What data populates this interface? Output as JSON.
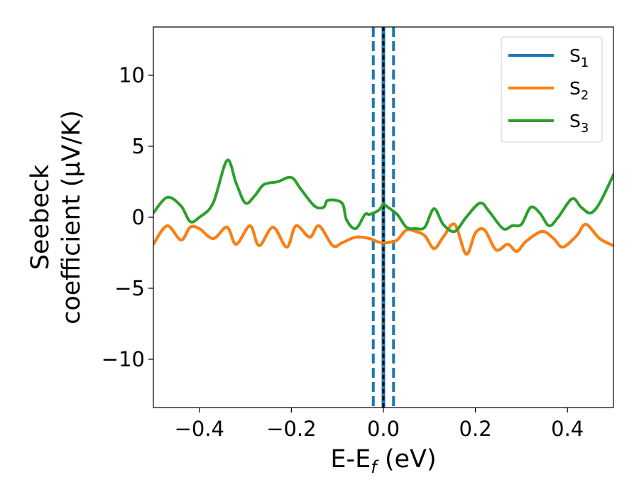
{
  "chart_data": {
    "type": "line",
    "xlabel_main": "E-E",
    "xlabel_sub": "f",
    "xlabel_tail": " (eV)",
    "ylabel_line1": "Seebeck",
    "ylabel_line2": "coefficient  (μV/K)",
    "xlim": [
      -0.5,
      0.5
    ],
    "ylim": [
      -13.4,
      13.4
    ],
    "xticks": [
      -0.4,
      -0.2,
      0.0,
      0.2,
      0.4
    ],
    "xtick_labels": [
      "−0.4",
      "−0.2",
      "0.0",
      "0.2",
      "0.4"
    ],
    "yticks": [
      -10,
      -5,
      0,
      5,
      10
    ],
    "ytick_labels": [
      "−10",
      "−5",
      "0",
      "5",
      "10"
    ],
    "grid": false,
    "legend_position": "top-right",
    "series": [
      {
        "name": "S",
        "sub": "1",
        "color": "#1f77b4",
        "x": [
          -0.5,
          -0.47,
          -0.44,
          -0.42,
          -0.4,
          -0.37,
          -0.34,
          -0.32,
          -0.29,
          -0.27,
          -0.24,
          -0.21,
          -0.19,
          -0.16,
          -0.14,
          -0.11,
          -0.09,
          -0.06,
          -0.03,
          -0.015,
          0.0,
          0.015,
          0.03,
          0.05,
          0.07,
          0.09,
          0.11,
          0.13,
          0.155,
          0.18,
          0.2,
          0.22,
          0.245,
          0.27,
          0.29,
          0.31,
          0.345,
          0.37,
          0.39,
          0.42,
          0.44,
          0.47,
          0.5
        ],
        "y": [
          -1.9,
          -0.6,
          -1.6,
          -0.7,
          -0.8,
          -1.5,
          -0.7,
          -1.9,
          -0.6,
          -2.0,
          -0.7,
          -2.1,
          -0.6,
          -1.4,
          -0.6,
          -2.0,
          -1.8,
          -1.4,
          -1.5,
          -1.7,
          -1.8,
          -1.75,
          -1.6,
          -0.9,
          -1.0,
          -1.3,
          -2.2,
          -1.4,
          -0.5,
          -2.6,
          -1.1,
          -0.9,
          -2.3,
          -1.9,
          -2.4,
          -1.7,
          -1.0,
          -1.5,
          -2.1,
          -1.3,
          -0.5,
          -1.5,
          -2.0
        ]
      },
      {
        "name": "S",
        "sub": "2",
        "color": "#ff7f0e",
        "x": [
          -0.5,
          -0.47,
          -0.44,
          -0.42,
          -0.4,
          -0.37,
          -0.34,
          -0.32,
          -0.29,
          -0.27,
          -0.24,
          -0.21,
          -0.19,
          -0.16,
          -0.14,
          -0.11,
          -0.09,
          -0.06,
          -0.03,
          -0.015,
          0.0,
          0.015,
          0.03,
          0.05,
          0.07,
          0.09,
          0.11,
          0.13,
          0.155,
          0.18,
          0.2,
          0.22,
          0.245,
          0.27,
          0.29,
          0.31,
          0.345,
          0.37,
          0.39,
          0.42,
          0.44,
          0.47,
          0.5
        ],
        "y": [
          -1.9,
          -0.6,
          -1.6,
          -0.7,
          -0.8,
          -1.5,
          -0.7,
          -1.9,
          -0.6,
          -2.0,
          -0.7,
          -2.1,
          -0.6,
          -1.4,
          -0.6,
          -2.0,
          -1.8,
          -1.4,
          -1.5,
          -1.7,
          -1.8,
          -1.75,
          -1.6,
          -0.9,
          -1.0,
          -1.3,
          -2.2,
          -1.4,
          -0.5,
          -2.6,
          -1.1,
          -0.9,
          -2.3,
          -1.9,
          -2.4,
          -1.7,
          -1.0,
          -1.5,
          -2.1,
          -1.3,
          -0.5,
          -1.5,
          -2.0
        ]
      },
      {
        "name": "S",
        "sub": "3",
        "color": "#2ca02c",
        "x": [
          -0.5,
          -0.47,
          -0.44,
          -0.42,
          -0.4,
          -0.37,
          -0.34,
          -0.32,
          -0.3,
          -0.28,
          -0.26,
          -0.23,
          -0.2,
          -0.18,
          -0.15,
          -0.13,
          -0.12,
          -0.09,
          -0.08,
          -0.06,
          -0.04,
          -0.03,
          -0.01,
          0.0,
          0.01,
          0.03,
          0.05,
          0.07,
          0.09,
          0.11,
          0.13,
          0.155,
          0.18,
          0.21,
          0.23,
          0.26,
          0.28,
          0.3,
          0.32,
          0.34,
          0.36,
          0.38,
          0.41,
          0.43,
          0.45,
          0.47,
          0.5
        ],
        "y": [
          0.3,
          1.4,
          0.8,
          -0.3,
          0.0,
          1.0,
          4.0,
          2.4,
          1.0,
          1.5,
          2.3,
          2.5,
          2.8,
          2.0,
          0.8,
          0.7,
          1.2,
          1.0,
          -0.2,
          -0.8,
          0.2,
          0.2,
          0.5,
          0.9,
          0.7,
          0.2,
          -0.7,
          -0.8,
          -0.7,
          0.6,
          -0.5,
          -1.0,
          0.0,
          1.0,
          0.4,
          -0.8,
          -0.6,
          -0.5,
          0.7,
          0.3,
          -0.6,
          0.0,
          1.3,
          0.7,
          0.3,
          1.0,
          3.0
        ]
      }
    ],
    "vlines": [
      {
        "x": -0.022,
        "color": "#1f77b4",
        "style": "dashed"
      },
      {
        "x": 0.0,
        "color": "#1f77b4",
        "style": "solid"
      },
      {
        "x": 0.0,
        "color": "#000000",
        "style": "dashed"
      },
      {
        "x": 0.022,
        "color": "#1f77b4",
        "style": "dashed"
      }
    ]
  }
}
